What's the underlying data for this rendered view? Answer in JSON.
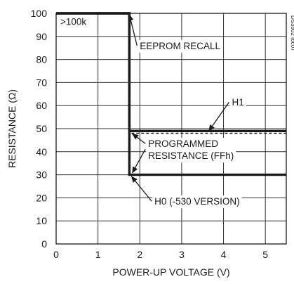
{
  "chart_data": {
    "type": "line",
    "xlabel": "POWER-UP VOLTAGE (V)",
    "ylabel": "RESISTANCE (Ω)",
    "xlim": [
      0,
      5.5
    ],
    "ylim": [
      0,
      100
    ],
    "xticks": [
      0,
      1,
      2,
      3,
      4,
      5
    ],
    "yticks": [
      0,
      10,
      20,
      30,
      40,
      50,
      60,
      70,
      80,
      90,
      100
    ],
    "grid": true,
    "figure_code": "DS3902 toc07",
    "series": [
      {
        "name": "H1",
        "style": "solid",
        "x": [
          0,
          1.75,
          1.75,
          5.5
        ],
        "y": [
          100,
          100,
          49,
          49
        ]
      },
      {
        "name": "",
        "style": "dashed",
        "x": [
          1.8,
          5.5
        ],
        "y": [
          48,
          48
        ]
      },
      {
        "name": "H0 (-530 VERSION)",
        "style": "solid",
        "x": [
          0,
          1.75,
          1.75,
          5.5
        ],
        "y": [
          100,
          100,
          30,
          30
        ]
      }
    ],
    "annotations": [
      {
        "id": "over-100k",
        "text": ">100k",
        "x": 0.1,
        "y": 95
      },
      {
        "id": "eeprom-recall",
        "lines": [
          "EEPROM RECALL"
        ],
        "text_x": 2.0,
        "text_y": 84.5,
        "target_x": 1.75,
        "target_y": 99.5
      },
      {
        "id": "h1",
        "lines": [
          "H1"
        ],
        "text_x": 4.2,
        "text_y": 60,
        "target_x": 3.65,
        "target_y": 49
      },
      {
        "id": "programmed-resistance",
        "lines": [
          "PROGRAMMED",
          "RESISTANCE (FFh)"
        ],
        "text_x": 2.2,
        "text_y": 42,
        "target_x": 1.82,
        "target_y": 47.8,
        "target2_x": 1.82,
        "target2_y": 30.8
      },
      {
        "id": "h0",
        "lines": [
          "H0 (-530 VERSION)"
        ],
        "text_x": 2.35,
        "text_y": 17,
        "target_x": 1.8,
        "target_y": 29.3
      }
    ]
  }
}
